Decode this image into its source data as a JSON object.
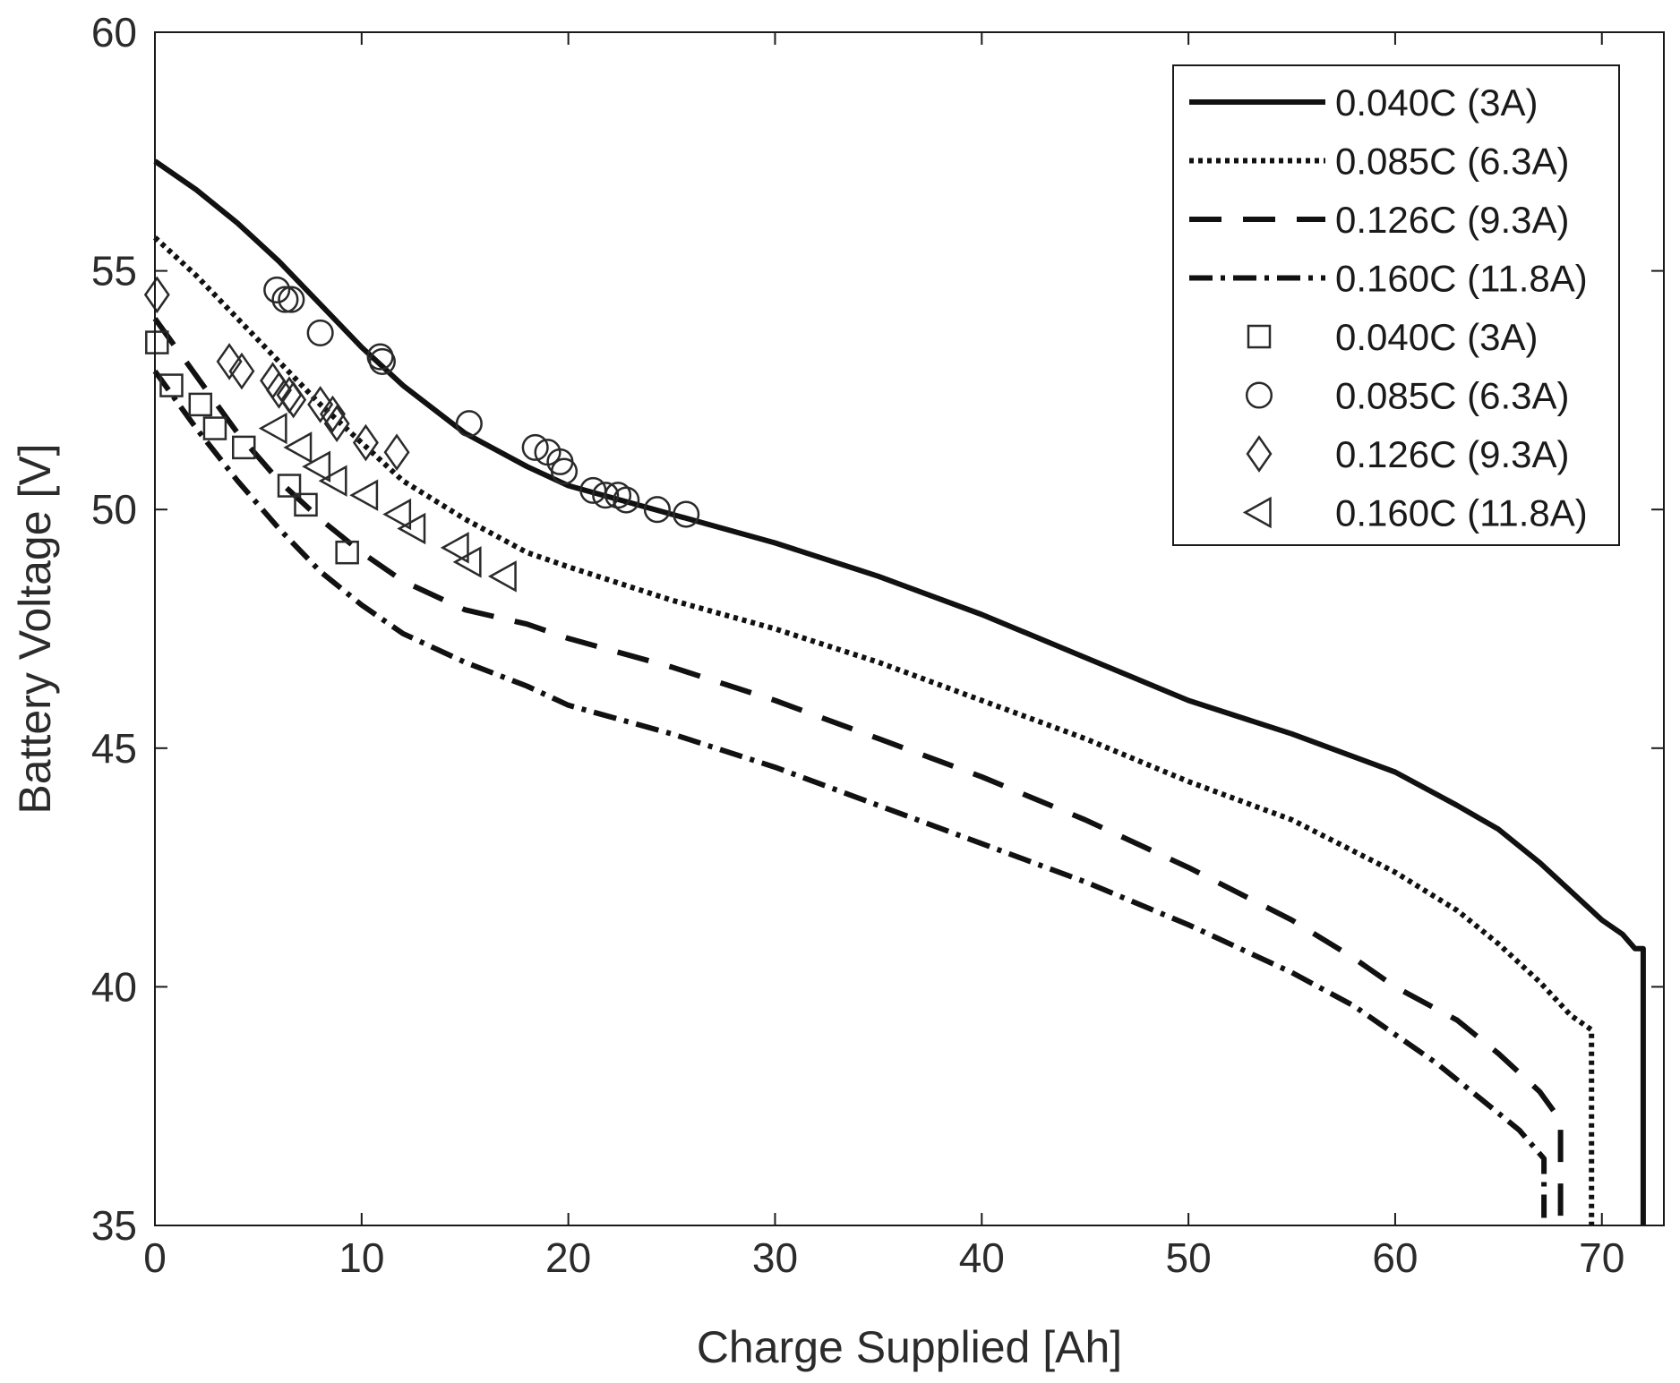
{
  "chart_data": {
    "type": "line",
    "title": "",
    "xlabel": "Charge Supplied [Ah]",
    "ylabel": "Battery Voltage [V]",
    "xlim": [
      0,
      73
    ],
    "ylim": [
      35,
      60
    ],
    "xticks": [
      "0",
      "10",
      "20",
      "30",
      "40",
      "50",
      "60",
      "70"
    ],
    "yticks": [
      "35",
      "40",
      "45",
      "50",
      "55",
      "60"
    ],
    "grid": false,
    "legend_position": "top-right",
    "line_series": [
      {
        "name": "0.040C (3A)",
        "style": "solid",
        "x": [
          0,
          2,
          4,
          6,
          8,
          10,
          12,
          15,
          18,
          20,
          25,
          30,
          35,
          40,
          45,
          50,
          55,
          60,
          63,
          65,
          67,
          69,
          70,
          71,
          71.6,
          72.0,
          72.0
        ],
        "y": [
          57.3,
          56.7,
          56.0,
          55.2,
          54.3,
          53.4,
          52.6,
          51.6,
          50.9,
          50.5,
          49.9,
          49.3,
          48.6,
          47.8,
          46.9,
          46.0,
          45.3,
          44.5,
          43.8,
          43.3,
          42.6,
          41.8,
          41.4,
          41.1,
          40.8,
          40.8,
          35.0
        ]
      },
      {
        "name": "0.085C (6.3A)",
        "style": "dotted",
        "x": [
          0,
          2,
          4,
          6,
          8,
          10,
          12,
          15,
          18,
          20,
          25,
          30,
          35,
          40,
          45,
          50,
          55,
          60,
          63,
          65,
          67,
          68.5,
          69.5,
          69.5
        ],
        "y": [
          55.7,
          54.9,
          54.0,
          53.1,
          52.2,
          51.4,
          50.6,
          49.8,
          49.1,
          48.8,
          48.1,
          47.5,
          46.8,
          46.0,
          45.2,
          44.3,
          43.5,
          42.4,
          41.6,
          40.9,
          40.1,
          39.4,
          39.1,
          35.0
        ]
      },
      {
        "name": "0.126C (9.3A)",
        "style": "dashed",
        "x": [
          0,
          2,
          4,
          6,
          8,
          10,
          12,
          15,
          18,
          20,
          25,
          30,
          35,
          40,
          45,
          50,
          55,
          58,
          60,
          63,
          65,
          67,
          68.0,
          68.0
        ],
        "y": [
          54.0,
          52.8,
          51.6,
          50.6,
          49.8,
          49.1,
          48.5,
          47.9,
          47.6,
          47.3,
          46.7,
          46.0,
          45.2,
          44.4,
          43.5,
          42.5,
          41.4,
          40.6,
          40.0,
          39.3,
          38.6,
          37.8,
          37.2,
          35.0
        ]
      },
      {
        "name": "0.160C (11.8A)",
        "style": "dash-dot",
        "x": [
          0,
          2,
          4,
          6,
          8,
          10,
          12,
          15,
          18,
          20,
          25,
          30,
          35,
          40,
          45,
          50,
          55,
          58,
          60,
          62,
          64,
          66,
          67.2,
          67.2
        ],
        "y": [
          52.9,
          51.7,
          50.6,
          49.6,
          48.7,
          48.0,
          47.4,
          46.8,
          46.3,
          45.9,
          45.3,
          44.6,
          43.8,
          43.0,
          42.2,
          41.3,
          40.3,
          39.6,
          39.0,
          38.4,
          37.7,
          37.0,
          36.4,
          35.0
        ]
      }
    ],
    "scatter_series": [
      {
        "name": "0.040C (3A)",
        "marker": "square",
        "x": [
          0.1,
          0.8,
          2.2,
          2.9,
          4.3,
          6.5,
          7.3,
          9.3
        ],
        "y": [
          53.5,
          52.6,
          52.2,
          51.7,
          51.3,
          50.5,
          50.1,
          49.1
        ]
      },
      {
        "name": "0.085C (6.3A)",
        "marker": "circle",
        "x": [
          5.9,
          6.3,
          6.6,
          8.0,
          10.9,
          11.0,
          15.2,
          18.4,
          19.0,
          19.6,
          19.8,
          21.2,
          21.8,
          22.4,
          22.8,
          24.3,
          25.7
        ],
        "y": [
          54.6,
          54.4,
          54.4,
          53.7,
          53.2,
          53.1,
          51.8,
          51.3,
          51.2,
          51.0,
          50.8,
          50.4,
          50.3,
          50.3,
          50.2,
          50.0,
          49.9
        ]
      },
      {
        "name": "0.126C (9.3A)",
        "marker": "diamond",
        "x": [
          0.1,
          3.6,
          4.2,
          5.7,
          6.0,
          6.5,
          6.7,
          8.0,
          8.6,
          8.8,
          10.2,
          11.7
        ],
        "y": [
          54.5,
          53.1,
          52.9,
          52.7,
          52.5,
          52.4,
          52.3,
          52.2,
          52.0,
          51.8,
          51.4,
          51.2
        ]
      },
      {
        "name": "0.160C (11.8A)",
        "marker": "triangle-left",
        "x": [
          5.8,
          7.0,
          7.9,
          8.7,
          10.2,
          11.8,
          12.5,
          14.6,
          15.2,
          16.9
        ],
        "y": [
          51.7,
          51.3,
          50.9,
          50.6,
          50.3,
          49.9,
          49.6,
          49.2,
          48.9,
          48.6
        ]
      }
    ]
  }
}
